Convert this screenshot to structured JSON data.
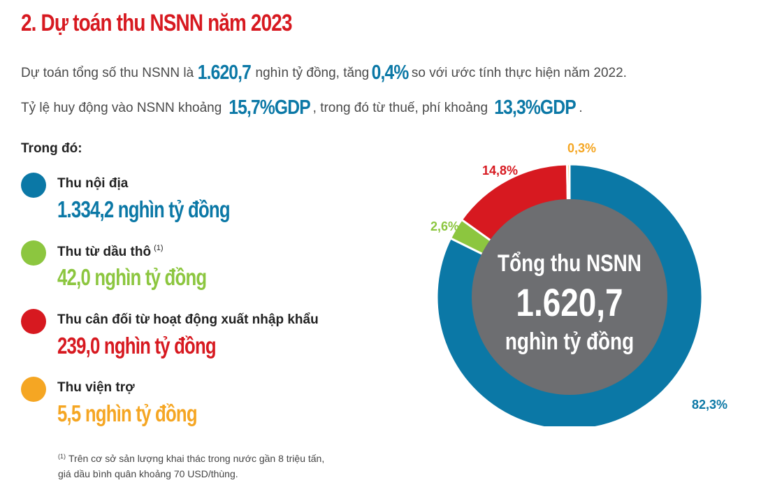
{
  "title": "2. Dự toán thu NSNN năm 2023",
  "intro": {
    "line1_a": "Dự toán tổng số thu NSNN là ",
    "line1_v1": "1.620,7",
    "line1_b": " nghìn tỷ đồng, tăng ",
    "line1_v2": "0,4%",
    "line1_c": " so với ước tính thực hiện năm 2022.",
    "line2_a": "Tỷ lệ huy động vào NSNN khoảng ",
    "line2_v1": "15,7%GDP",
    "line2_b": ", trong đó từ thuế, phí khoảng ",
    "line2_v2": "13,3%GDP",
    "line2_c": "."
  },
  "legend_heading": "Trong đó:",
  "legend": [
    {
      "label": "Thu nội địa",
      "value": "1.334,2 nghìn tỷ đồng",
      "color": "#0b78a6"
    },
    {
      "label": "Thu từ dầu thô",
      "sup": "(1)",
      "value": "42,0 nghìn tỷ đồng",
      "color": "#8cc63f"
    },
    {
      "label": "Thu cân đối từ hoạt động xuất nhập khẩu",
      "value": "239,0 nghìn tỷ đồng",
      "color": "#d71920"
    },
    {
      "label": "Thu viện trợ",
      "value": "5,5 nghìn tỷ đồng",
      "color": "#f5a623"
    }
  ],
  "footnote": {
    "mark": "(1)",
    "line1": "Trên cơ sở sản lượng khai thác trong nước gần 8 triệu tấn,",
    "line2": "giá dầu bình quân khoảng 70 USD/thùng."
  },
  "chart_data": {
    "type": "pie",
    "categories": [
      "Thu nội địa",
      "Thu từ dầu thô",
      "Thu cân đối từ hoạt động xuất nhập khẩu",
      "Thu viện trợ"
    ],
    "values": [
      82.3,
      2.6,
      14.8,
      0.3
    ],
    "labels": [
      "82,3%",
      "2,6%",
      "14,8%",
      "0,3%"
    ],
    "colors": [
      "#0b78a6",
      "#8cc63f",
      "#d71920",
      "#f5a623"
    ],
    "center": {
      "line1": "Tổng thu NSNN",
      "line2": "1.620,7",
      "line3": "nghìn tỷ đồng"
    },
    "center_color": "#6d6e71"
  }
}
